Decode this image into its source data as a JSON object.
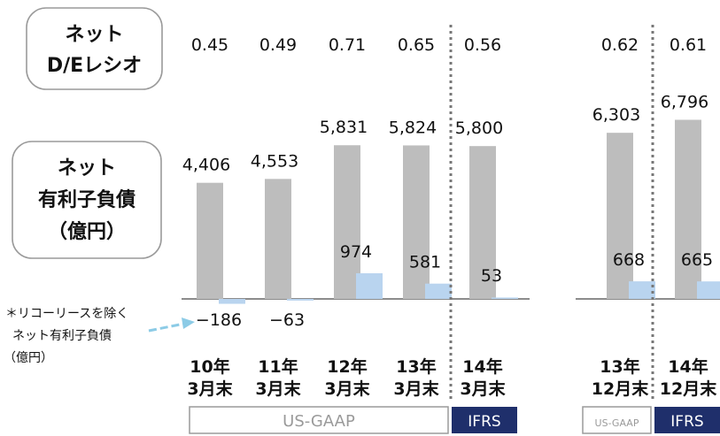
{
  "labels": {
    "ratio_label_lines": [
      "ネット",
      "D/Eレシオ"
    ],
    "debt_label_lines": [
      "ネット",
      "有利子負債",
      "（億円）"
    ],
    "note_lines": [
      "＊リコーリースを除く",
      "ネット有利子負債",
      "（億円）"
    ]
  },
  "chart_data": {
    "type": "bar",
    "title": "",
    "categories": [
      [
        "10年",
        "3月末"
      ],
      [
        "11年",
        "3月末"
      ],
      [
        "12年",
        "3月末"
      ],
      [
        "13年",
        "3月末"
      ],
      [
        "14年",
        "3月末"
      ],
      [
        "13年",
        "12月末"
      ],
      [
        "14年",
        "12月末"
      ]
    ],
    "de_ratio": [
      "0.45",
      "0.49",
      "0.71",
      "0.65",
      "0.56",
      "0.62",
      "0.61"
    ],
    "series": [
      {
        "values": [
          4406,
          4553,
          5831,
          5824,
          5800,
          6303,
          6796
        ],
        "labels": [
          "4,406",
          "4,553",
          "5,831",
          "5,824",
          "5,800",
          "6,303",
          "6,796"
        ],
        "color": "#bdbdbd"
      },
      {
        "values": [
          -186,
          -63,
          974,
          581,
          53,
          668,
          665
        ],
        "labels": [
          "−186",
          "−63",
          "974",
          "581",
          "53",
          "668",
          "665"
        ],
        "color": "#b9d4ef"
      }
    ],
    "accounting_standards": [
      {
        "label": "US-GAAP",
        "categories": [
          0,
          3
        ]
      },
      {
        "label": "IFRS",
        "categories": [
          4,
          4
        ]
      },
      {
        "label": "US-GAAP",
        "categories": [
          5,
          5
        ]
      },
      {
        "label": "IFRS",
        "categories": [
          6,
          6
        ]
      }
    ],
    "colors": {
      "axis": "#666666",
      "divider": "#777777",
      "arrow": "#8ccbe6",
      "ifrs": "#1f2f6b"
    }
  }
}
